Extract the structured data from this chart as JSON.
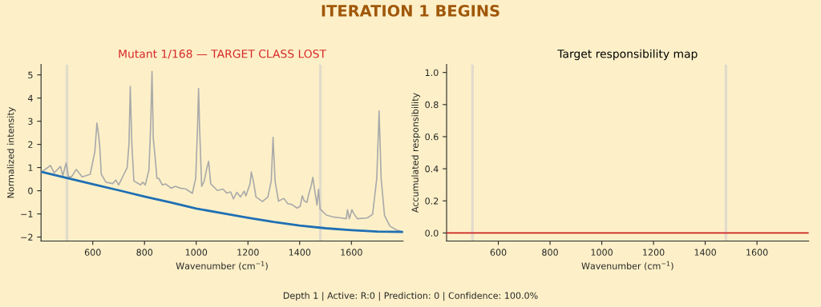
{
  "chart_data": [
    {
      "type": "line",
      "title": "Mutant 1/168 — TARGET CLASS LOST",
      "xlabel": "Wavenumber (cm$^{−1}$)",
      "ylabel": "Normalized intensity",
      "annotations": [
        "ITERATION 1 BEGINS",
        "Depth 1 | Active: R:0 | Prediction: 0 | Confidence: 100.0%"
      ],
      "xlim": [
        400,
        1800
      ],
      "ylim": [
        -2.17,
        5.45
      ],
      "xticks": [
        600,
        800,
        1000,
        1200,
        1400,
        1600
      ],
      "yticks": [
        {
          "value": -2,
          "label": "−2"
        },
        {
          "value": -1,
          "label": "−1"
        },
        0,
        1,
        2,
        3,
        4,
        5
      ],
      "grid": false,
      "legend": false,
      "ref_lines": [
        {
          "axis": "x",
          "value": 500,
          "color": "#e3dccb"
        },
        {
          "axis": "x",
          "value": 1480,
          "color": "#e3dccb"
        }
      ],
      "series": [
        {
          "color": "#aaaaaa",
          "x": [
            402,
            436,
            451,
            475,
            484,
            497,
            506,
            518,
            536,
            559,
            590,
            608,
            616,
            623,
            627,
            633,
            651,
            677,
            689,
            700,
            723,
            733,
            740,
            745,
            751,
            759,
            785,
            793,
            803,
            817,
            824,
            829,
            834,
            840,
            848,
            856,
            869,
            882,
            903,
            920,
            938,
            959,
            985,
            998,
            1005,
            1009,
            1013,
            1021,
            1031,
            1041,
            1048,
            1056,
            1082,
            1103,
            1118,
            1133,
            1144,
            1157,
            1171,
            1185,
            1192,
            1208,
            1213,
            1221,
            1231,
            1256,
            1277,
            1290,
            1297,
            1305,
            1318,
            1339,
            1354,
            1369,
            1390,
            1402,
            1410,
            1418,
            1428,
            1436,
            1444,
            1451,
            1459,
            1467,
            1473,
            1479,
            1503,
            1528,
            1559,
            1580,
            1585,
            1592,
            1602,
            1608,
            1623,
            1662,
            1682,
            1698,
            1707,
            1715,
            1728,
            1749,
            1775,
            1790
          ],
          "values": [
            0.8,
            1.09,
            0.77,
            1.05,
            0.65,
            1.2,
            0.6,
            0.6,
            0.92,
            0.6,
            0.71,
            1.69,
            2.92,
            2.37,
            1.89,
            0.71,
            0.37,
            0.31,
            0.46,
            0.25,
            0.77,
            1.0,
            2.03,
            4.5,
            2.03,
            0.42,
            0.25,
            0.37,
            0.25,
            0.88,
            2.83,
            5.15,
            2.26,
            1.57,
            0.54,
            0.52,
            0.25,
            0.29,
            0.11,
            0.19,
            0.11,
            0.08,
            -0.11,
            0.54,
            2.72,
            4.42,
            2.72,
            0.19,
            0.42,
            0.98,
            1.27,
            0.3,
            0.01,
            0.07,
            -0.1,
            -0.05,
            -0.35,
            -0.07,
            -0.27,
            -0.02,
            -0.22,
            0.3,
            0.81,
            0.41,
            -0.27,
            -0.47,
            -0.27,
            0.41,
            2.3,
            0.41,
            -0.45,
            -0.33,
            -0.56,
            -0.59,
            -0.75,
            -0.67,
            -0.22,
            -0.45,
            -0.5,
            -0.1,
            0.18,
            0.58,
            -0.05,
            -0.62,
            0.07,
            -0.79,
            -1.05,
            -1.13,
            -1.17,
            -1.21,
            -0.82,
            -1.21,
            -0.82,
            -0.96,
            -1.21,
            -1.17,
            -1.02,
            0.53,
            3.44,
            0.53,
            -1.07,
            -1.53,
            -1.7,
            -1.74
          ]
        },
        {
          "color": "#1f6fb4",
          "x": [
            400,
            500,
            600,
            700,
            800,
            900,
            1000,
            1100,
            1200,
            1300,
            1400,
            1500,
            1600,
            1700,
            1800
          ],
          "values": [
            0.82,
            0.55,
            0.28,
            0.02,
            -0.25,
            -0.5,
            -0.77,
            -0.97,
            -1.17,
            -1.35,
            -1.5,
            -1.62,
            -1.7,
            -1.76,
            -1.78
          ]
        }
      ]
    },
    {
      "type": "line",
      "title": "Target responsibility map",
      "xlabel": "Wavenumber (cm$^{−1}$)",
      "ylabel": "Accumulated responsibility",
      "xlim": [
        400,
        1800
      ],
      "ylim": [
        -0.05,
        1.05
      ],
      "xticks": [
        600,
        800,
        1000,
        1200,
        1400,
        1600
      ],
      "yticks": [
        {
          "value": 0,
          "label": "0.0"
        },
        {
          "value": 0.2,
          "label": "0.2"
        },
        {
          "value": 0.4,
          "label": "0.4"
        },
        {
          "value": 0.6,
          "label": "0.6"
        },
        {
          "value": 0.8,
          "label": "0.8"
        },
        {
          "value": 1,
          "label": "1.0"
        }
      ],
      "grid": false,
      "legend": false,
      "ref_lines": [
        {
          "axis": "x",
          "value": 500,
          "color": "#e3dccb"
        },
        {
          "axis": "x",
          "value": 1480,
          "color": "#e3dccb"
        }
      ],
      "series": [
        {
          "color": "#cc2222",
          "x": [
            400,
            1800
          ],
          "values": [
            0,
            0
          ]
        }
      ]
    }
  ]
}
